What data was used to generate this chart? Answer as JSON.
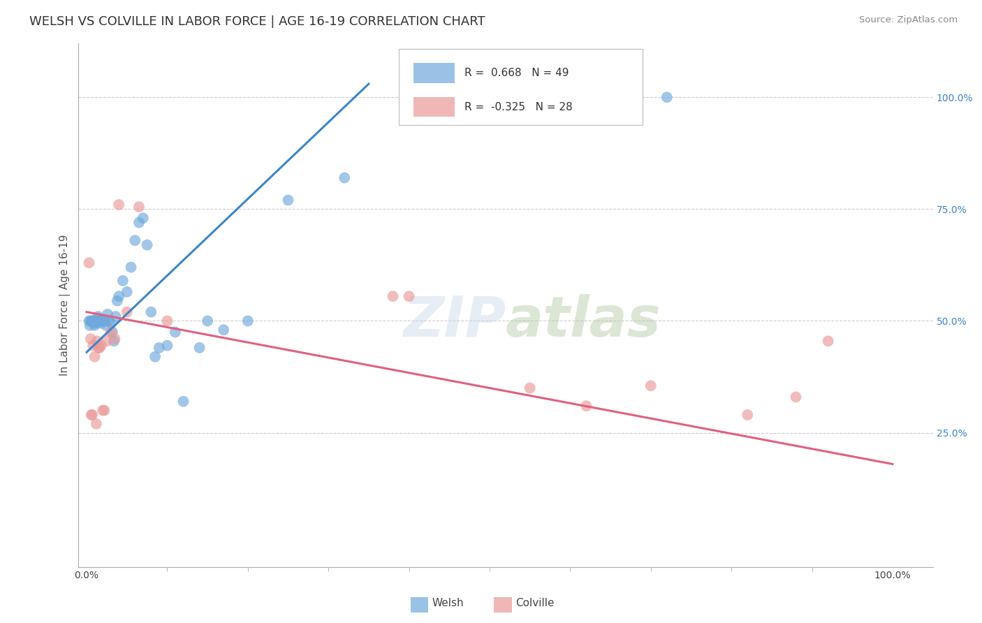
{
  "title": "WELSH VS COLVILLE IN LABOR FORCE | AGE 16-19 CORRELATION CHART",
  "source": "Source: ZipAtlas.com",
  "ylabel": "In Labor Force | Age 16-19",
  "xlim": [
    -0.01,
    1.05
  ],
  "ylim": [
    -0.05,
    1.12
  ],
  "yticks": [
    0.25,
    0.5,
    0.75,
    1.0
  ],
  "ytick_labels": [
    "25.0%",
    "50.0%",
    "75.0%",
    "100.0%"
  ],
  "xtick_labels": [
    "0.0%",
    "100.0%"
  ],
  "blue_line": {
    "x0": 0.0,
    "y0": 0.43,
    "x1": 0.35,
    "y1": 1.03
  },
  "pink_line": {
    "x0": 0.0,
    "y0": 0.52,
    "x1": 1.0,
    "y1": 0.18
  },
  "welsh_x": [
    0.003,
    0.004,
    0.005,
    0.006,
    0.007,
    0.008,
    0.009,
    0.01,
    0.011,
    0.012,
    0.013,
    0.014,
    0.015,
    0.016,
    0.017,
    0.018,
    0.019,
    0.02,
    0.022,
    0.024,
    0.026,
    0.028,
    0.03,
    0.032,
    0.034,
    0.036,
    0.038,
    0.04,
    0.045,
    0.05,
    0.055,
    0.06,
    0.065,
    0.07,
    0.075,
    0.08,
    0.085,
    0.09,
    0.1,
    0.11,
    0.12,
    0.14,
    0.15,
    0.17,
    0.2,
    0.25,
    0.32,
    0.55,
    0.72
  ],
  "welsh_y": [
    0.5,
    0.49,
    0.5,
    0.5,
    0.5,
    0.5,
    0.495,
    0.49,
    0.5,
    0.495,
    0.5,
    0.51,
    0.505,
    0.5,
    0.5,
    0.495,
    0.5,
    0.5,
    0.5,
    0.49,
    0.515,
    0.5,
    0.495,
    0.475,
    0.455,
    0.51,
    0.545,
    0.555,
    0.59,
    0.565,
    0.62,
    0.68,
    0.72,
    0.73,
    0.67,
    0.52,
    0.42,
    0.44,
    0.445,
    0.475,
    0.32,
    0.44,
    0.5,
    0.48,
    0.5,
    0.77,
    0.82,
    1.0,
    1.0
  ],
  "colville_x": [
    0.003,
    0.005,
    0.006,
    0.007,
    0.008,
    0.01,
    0.012,
    0.013,
    0.015,
    0.016,
    0.018,
    0.02,
    0.022,
    0.025,
    0.03,
    0.035,
    0.04,
    0.05,
    0.065,
    0.1,
    0.38,
    0.4,
    0.55,
    0.62,
    0.7,
    0.82,
    0.88,
    0.92
  ],
  "colville_y": [
    0.63,
    0.46,
    0.29,
    0.29,
    0.445,
    0.42,
    0.27,
    0.455,
    0.44,
    0.44,
    0.445,
    0.3,
    0.3,
    0.455,
    0.475,
    0.46,
    0.76,
    0.52,
    0.755,
    0.5,
    0.555,
    0.555,
    0.35,
    0.31,
    0.355,
    0.29,
    0.33,
    0.455
  ],
  "dot_size": 130,
  "blue_color": "#6fa8dc",
  "pink_color": "#ea9999",
  "blue_line_color": "#3d85c8",
  "pink_line_color": "#e06080",
  "grid_color": "#cccccc",
  "background_color": "#ffffff",
  "title_fontsize": 13,
  "label_fontsize": 11,
  "tick_fontsize": 10,
  "source_fontsize": 9.5,
  "legend": {
    "welsh_R": "0.668",
    "welsh_N": "49",
    "colville_R": "-0.325",
    "colville_N": "28"
  }
}
